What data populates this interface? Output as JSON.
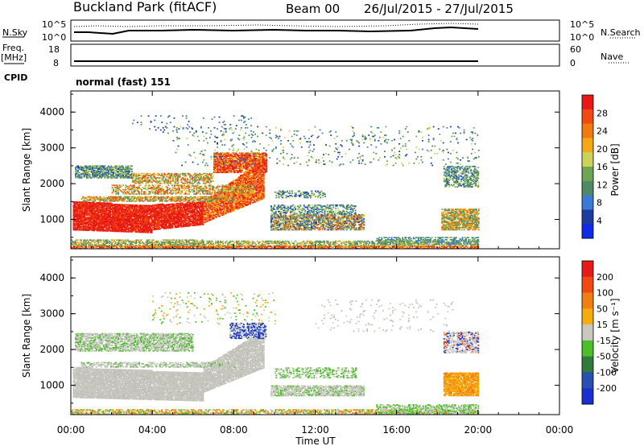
{
  "header": {
    "station": "Buckland Park (fitACF)",
    "beam": "Beam 00",
    "date_range": "26/Jul/2015 - 27/Jul/2015"
  },
  "summary": {
    "nsky_label": "N.Sky",
    "nsky_ticks": [
      "10^5",
      "10^0"
    ],
    "nsearch_label": "N.Search",
    "nsearch_ticks": [
      "10^5",
      "10^0"
    ],
    "freq_label": "Freq.",
    "freq_unit": "[MHz]",
    "freq_ticks": [
      "18",
      "8"
    ],
    "nave_label": "Nave",
    "nave_ticks": [
      "60",
      "0"
    ],
    "cpid_label": "CPID",
    "cpid_value": "normal (fast) 151"
  },
  "chart_data": [
    {
      "type": "heatmap",
      "panel": "power",
      "ylabel": "Slant Range [km]",
      "xlabel": "Time UT",
      "x_ticks": [
        "00:00",
        "04:00",
        "08:00",
        "12:00",
        "16:00",
        "20:00",
        "00:00"
      ],
      "x_range_hours": [
        0,
        24
      ],
      "y_ticks": [
        1000,
        2000,
        3000,
        4000
      ],
      "y_range_km": [
        180,
        4590
      ],
      "colorbar_label": "Power [dB]",
      "colorbar_ticks": [
        "4",
        "8",
        "12",
        "16",
        "20",
        "24",
        "28"
      ],
      "colorbar_colors": [
        "#0f2be8",
        "#1c3d9c",
        "#3a7bd6",
        "#4f8a67",
        "#6fa552",
        "#cad25a",
        "#f4a818",
        "#f07a10",
        "#f04a10",
        "#e81818"
      ]
    },
    {
      "type": "heatmap",
      "panel": "velocity",
      "ylabel": "Slant Range [km]",
      "xlabel": "Time UT",
      "x_ticks": [
        "00:00",
        "04:00",
        "08:00",
        "12:00",
        "16:00",
        "20:00",
        "00:00"
      ],
      "x_range_hours": [
        0,
        24
      ],
      "y_ticks": [
        1000,
        2000,
        3000,
        4000
      ],
      "y_range_km": [
        180,
        4590
      ],
      "colorbar_label": "Velocity [m s⁻¹]",
      "colorbar_ticks": [
        "200",
        "100",
        "50",
        "15",
        "-15",
        "-50",
        "-100",
        "-200"
      ],
      "colorbar_colors": [
        "#1a2fd0",
        "#2850b0",
        "#2f7a3c",
        "#4cbf28",
        "#c8c8c0",
        "#f4ac10",
        "#f07e10",
        "#f04a10",
        "#e81a18"
      ]
    }
  ]
}
